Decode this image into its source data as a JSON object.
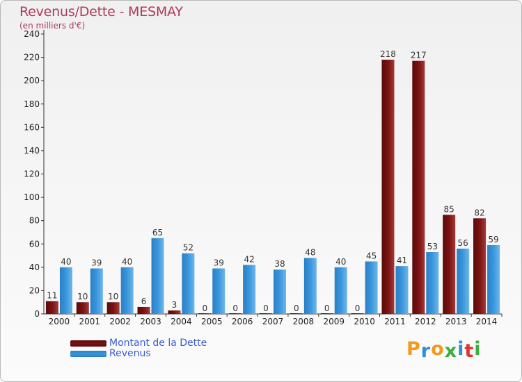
{
  "title": "Revenus/Dette - MESMAY",
  "subtitle": "(en milliers d'€)",
  "colors": {
    "dette": "#7b1212",
    "revenus": "#3a97dc",
    "title": "#b03a5b",
    "legend_text": "#3b5bd6"
  },
  "legend": {
    "dette": "Montant de la Dette",
    "revenus": "Revenus"
  },
  "logo": {
    "letters": [
      "P",
      "r",
      "o",
      "x",
      "i",
      "t",
      "i"
    ],
    "colors": [
      "#f39a1e",
      "#2b8fd6",
      "#f39a1e",
      "#3cae3c",
      "#2b8fd6",
      "#e2332b",
      "#3cae3c"
    ]
  },
  "chart_data": {
    "type": "bar",
    "title": "Revenus/Dette - MESMAY",
    "subtitle": "(en milliers d'€)",
    "categories": [
      "2000",
      "2001",
      "2002",
      "2003",
      "2004",
      "2005",
      "2006",
      "2007",
      "2008",
      "2009",
      "2010",
      "2011",
      "2012",
      "2013",
      "2014"
    ],
    "series": [
      {
        "name": "Montant de la Dette",
        "values": [
          11,
          10,
          10,
          6,
          3,
          0,
          0,
          0,
          0,
          0,
          0,
          218,
          217,
          85,
          82
        ]
      },
      {
        "name": "Revenus",
        "values": [
          40,
          39,
          40,
          65,
          52,
          39,
          42,
          38,
          48,
          40,
          45,
          41,
          53,
          56,
          59
        ]
      }
    ],
    "ylim": [
      0,
      240
    ],
    "yticks": [
      0,
      20,
      40,
      60,
      80,
      100,
      120,
      140,
      160,
      180,
      200,
      220,
      240
    ],
    "grid": false,
    "legend_position": "bottom-left"
  }
}
